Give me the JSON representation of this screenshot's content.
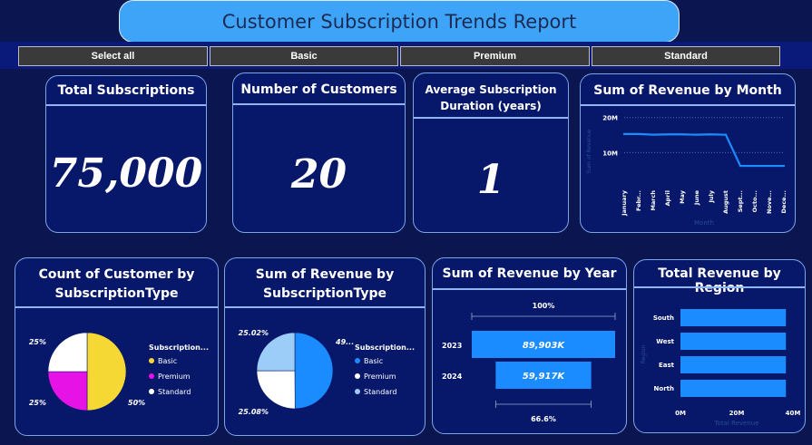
{
  "report": {
    "title": "Customer Subscription Trends Report"
  },
  "slicer": {
    "options": [
      "Select all",
      "Basic",
      "Premium",
      "Standard"
    ]
  },
  "kpis": {
    "total_subscriptions": {
      "title": "Total Subscriptions",
      "value": "75,000"
    },
    "number_of_customers": {
      "title": "Number of Customers",
      "value": "20"
    },
    "avg_duration": {
      "title_line1": "Average Subscription",
      "title_line2": "Duration (years)",
      "value": "1"
    }
  },
  "colors": {
    "basic": "#f5d833",
    "premium": "#e612e6",
    "standard": "#ffffff",
    "revenue_blue": "#1a8cff",
    "revenue_light": "#9cccf8"
  },
  "chart_data": [
    {
      "id": "revenue_by_month",
      "type": "line",
      "title": "Sum of Revenue by Month",
      "xlabel": "Month",
      "ylabel": "Sum of Revenue",
      "categories": [
        "January",
        "Febr...",
        "March",
        "April",
        "May",
        "June",
        "July",
        "August",
        "Sept...",
        "Octo...",
        "Nove...",
        "Dece..."
      ],
      "y_ticks": [
        "20M",
        "10M"
      ],
      "y_tick_values": [
        20,
        10
      ],
      "ylim": [
        0,
        22
      ],
      "series": [
        {
          "values": [
            15.3,
            15.3,
            15.1,
            15.2,
            15.2,
            15.1,
            15.2,
            15.1,
            6.2,
            6.2,
            6.2,
            6.2
          ]
        }
      ]
    },
    {
      "id": "customers_by_type",
      "type": "pie",
      "title_line1": "Count of Customer by",
      "title_line2": "SubscriptionType",
      "legend_title": "Subscription...",
      "slices": [
        {
          "name": "Basic",
          "value": 50,
          "label": "50%"
        },
        {
          "name": "Premium",
          "value": 25,
          "label": "25%"
        },
        {
          "name": "Standard",
          "value": 25,
          "label": "25%"
        }
      ]
    },
    {
      "id": "revenue_by_type",
      "type": "pie",
      "title_line1": "Sum of Revenue by",
      "title_line2": "SubscriptionType",
      "legend_title": "Subscription...",
      "slices": [
        {
          "name": "Basic",
          "value": 49.9,
          "label": "49..."
        },
        {
          "name": "Premium",
          "value": 25.08,
          "label": "25.08%"
        },
        {
          "name": "Standard",
          "value": 25.02,
          "label": "25.02%"
        }
      ]
    },
    {
      "id": "revenue_by_year",
      "type": "bar",
      "title": "Sum of Revenue by Year",
      "categories": [
        "2023",
        "2024"
      ],
      "values": [
        89903,
        59917
      ],
      "value_labels": [
        "89,903K",
        "59,917K"
      ],
      "top_label": "100%",
      "bottom_label": "66.6%"
    },
    {
      "id": "revenue_by_region",
      "type": "bar",
      "title": "Total Revenue by Region",
      "xlabel": "Total Revenue",
      "ylabel": "Region",
      "categories": [
        "South",
        "West",
        "East",
        "North"
      ],
      "values": [
        37.5,
        37.5,
        37.5,
        37.5
      ],
      "x_ticks": [
        "0M",
        "20M",
        "40M"
      ],
      "x_tick_values": [
        0,
        20,
        40
      ],
      "xlim": [
        0,
        40
      ]
    }
  ]
}
